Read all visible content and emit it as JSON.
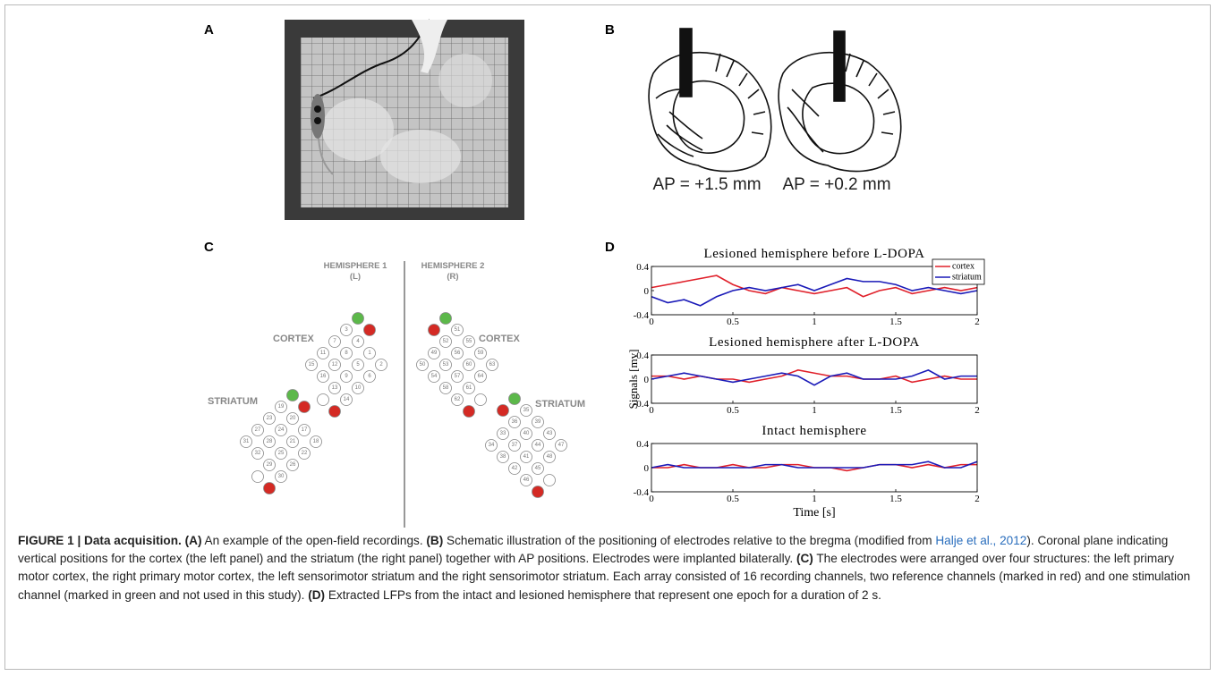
{
  "figure": {
    "panels": {
      "a": {
        "label": "A"
      },
      "b": {
        "label": "B",
        "sections": [
          "AP = +1.5 mm",
          "AP = +0.2 mm"
        ]
      },
      "c": {
        "label": "C",
        "hemispheres": [
          {
            "name": "HEMISPHERE 1",
            "side": "(L)"
          },
          {
            "name": "HEMISPHERE 2",
            "side": "(R)"
          }
        ],
        "structures": [
          "CORTEX",
          "STRIATUM",
          "CORTEX",
          "STRIATUM"
        ],
        "arrays": [
          [
            [
              null,
              null
            ],
            [
              "3",
              "4",
              "1",
              "2"
            ],
            [
              "7",
              "8",
              "5",
              "6"
            ],
            [
              "11",
              "12",
              "9",
              "10"
            ],
            [
              "15",
              "16",
              "13",
              "14"
            ],
            [
              null,
              null
            ]
          ],
          [
            [
              null,
              null
            ],
            [
              "19",
              "20",
              "17",
              "18"
            ],
            [
              "23",
              "24",
              "21",
              "22"
            ],
            [
              "27",
              "28",
              "25",
              "26"
            ],
            [
              "31",
              "32",
              "29",
              "30"
            ],
            [
              null,
              null
            ]
          ],
          [
            [
              null,
              null
            ],
            [
              "51",
              "52",
              "49",
              "50"
            ],
            [
              "55",
              "56",
              "53",
              "54"
            ],
            [
              "59",
              "60",
              "57",
              "58"
            ],
            [
              "63",
              "64",
              "61",
              "62"
            ],
            [
              null,
              null
            ]
          ],
          [
            [
              null,
              null
            ],
            [
              "35",
              "36",
              "33",
              "34"
            ],
            [
              "39",
              "40",
              "37",
              "38"
            ],
            [
              "43",
              "44",
              "41",
              "42"
            ],
            [
              "47",
              "48",
              "45",
              "46"
            ],
            [
              null,
              null
            ]
          ]
        ]
      },
      "d": {
        "label": "D"
      }
    },
    "caption": [
      "FIGURE 1 | Data acquisition.",
      "(A)",
      "An example of the open-field recordings.",
      "(B)",
      "Schematic illustration of the positioning of electrodes relative to the bregma (modified from",
      "Halje et al., 2012",
      "). Coronal plane indicating vertical positions for the cortex (the left panel) and the striatum (the right panel) together with AP positions. Electrodes were implanted bilaterally.",
      "(C)",
      "The electrodes were arranged over four structures: the left primary motor cortex, the right primary motor cortex, the left sensorimotor striatum and the right sensorimotor striatum. Each array consisted of 16 recording channels, two reference channels (marked in red) and one stimulation channel (marked in green and not used in this study).",
      "(D)",
      "Extracted LFPs from the intact and lesioned hemisphere that represent one epoch for a duration of 2 s."
    ]
  },
  "chart_data": [
    {
      "type": "line",
      "title": "Lesioned hemisphere before L-DOPA",
      "x": [
        0,
        0.1,
        0.2,
        0.3,
        0.4,
        0.5,
        0.6,
        0.7,
        0.8,
        0.9,
        1,
        1.1,
        1.2,
        1.3,
        1.4,
        1.5,
        1.6,
        1.7,
        1.8,
        1.9,
        2
      ],
      "series": [
        {
          "name": "cortex",
          "color": "#e0202a",
          "values": [
            0.05,
            0.1,
            0.15,
            0.2,
            0.25,
            0.1,
            0.0,
            -0.05,
            0.05,
            0.0,
            -0.05,
            0.0,
            0.05,
            -0.1,
            0.0,
            0.05,
            -0.05,
            0.0,
            0.05,
            0.0,
            0.05
          ]
        },
        {
          "name": "striatum",
          "color": "#1a1ab8",
          "values": [
            -0.1,
            -0.2,
            -0.15,
            -0.25,
            -0.1,
            0.0,
            0.05,
            0.0,
            0.05,
            0.1,
            0.0,
            0.1,
            0.2,
            0.15,
            0.15,
            0.1,
            0.0,
            0.05,
            0.0,
            -0.05,
            0.0
          ]
        }
      ],
      "xlim": [
        0,
        2
      ],
      "xticks": [
        0,
        0.5,
        1,
        1.5,
        2
      ],
      "ylim": [
        -0.4,
        0.4
      ],
      "yticks": [
        0.4,
        0,
        -0.4
      ],
      "legend": "upper right"
    },
    {
      "type": "line",
      "title": "Lesioned hemisphere after L-DOPA",
      "y_label": "Signals [mv]",
      "x": [
        0,
        0.1,
        0.2,
        0.3,
        0.4,
        0.5,
        0.6,
        0.7,
        0.8,
        0.9,
        1,
        1.1,
        1.2,
        1.3,
        1.4,
        1.5,
        1.6,
        1.7,
        1.8,
        1.9,
        2
      ],
      "series": [
        {
          "color": "#e0202a",
          "values": [
            0.05,
            0.05,
            0.0,
            0.05,
            0.0,
            0.0,
            -0.05,
            0.0,
            0.05,
            0.15,
            0.1,
            0.05,
            0.05,
            0.0,
            0.0,
            0.05,
            -0.05,
            0.0,
            0.05,
            0.0,
            0.0
          ]
        },
        {
          "color": "#1a1ab8",
          "values": [
            0.0,
            0.05,
            0.1,
            0.05,
            0.0,
            -0.05,
            0.0,
            0.05,
            0.1,
            0.05,
            -0.1,
            0.05,
            0.1,
            0.0,
            0.0,
            0.0,
            0.05,
            0.15,
            0.0,
            0.05,
            0.05
          ]
        }
      ],
      "xlim": [
        0,
        2
      ],
      "xticks": [
        0,
        0.5,
        1,
        1.5,
        2
      ],
      "ylim": [
        -0.4,
        0.4
      ],
      "yticks": [
        0.4,
        0,
        -0.4
      ]
    },
    {
      "type": "line",
      "title": "Intact hemisphere",
      "x_label": "Time [s]",
      "x": [
        0,
        0.1,
        0.2,
        0.3,
        0.4,
        0.5,
        0.6,
        0.7,
        0.8,
        0.9,
        1,
        1.1,
        1.2,
        1.3,
        1.4,
        1.5,
        1.6,
        1.7,
        1.8,
        1.9,
        2
      ],
      "series": [
        {
          "color": "#e0202a",
          "values": [
            0.0,
            0.0,
            0.05,
            0.0,
            0.0,
            0.05,
            0.0,
            0.0,
            0.05,
            0.05,
            0.0,
            0.0,
            -0.05,
            0.0,
            0.05,
            0.05,
            0.0,
            0.05,
            0.0,
            0.05,
            0.05
          ]
        },
        {
          "color": "#1a1ab8",
          "values": [
            0.0,
            0.05,
            0.0,
            0.0,
            0.0,
            0.0,
            0.0,
            0.05,
            0.05,
            0.0,
            0.0,
            0.0,
            0.0,
            0.0,
            0.05,
            0.05,
            0.05,
            0.1,
            0.0,
            0.0,
            0.1
          ]
        }
      ],
      "xlim": [
        0,
        2
      ],
      "xticks": [
        0,
        0.5,
        1,
        1.5,
        2
      ],
      "ylim": [
        -0.4,
        0.4
      ],
      "yticks": [
        0.4,
        0,
        -0.4
      ]
    }
  ]
}
